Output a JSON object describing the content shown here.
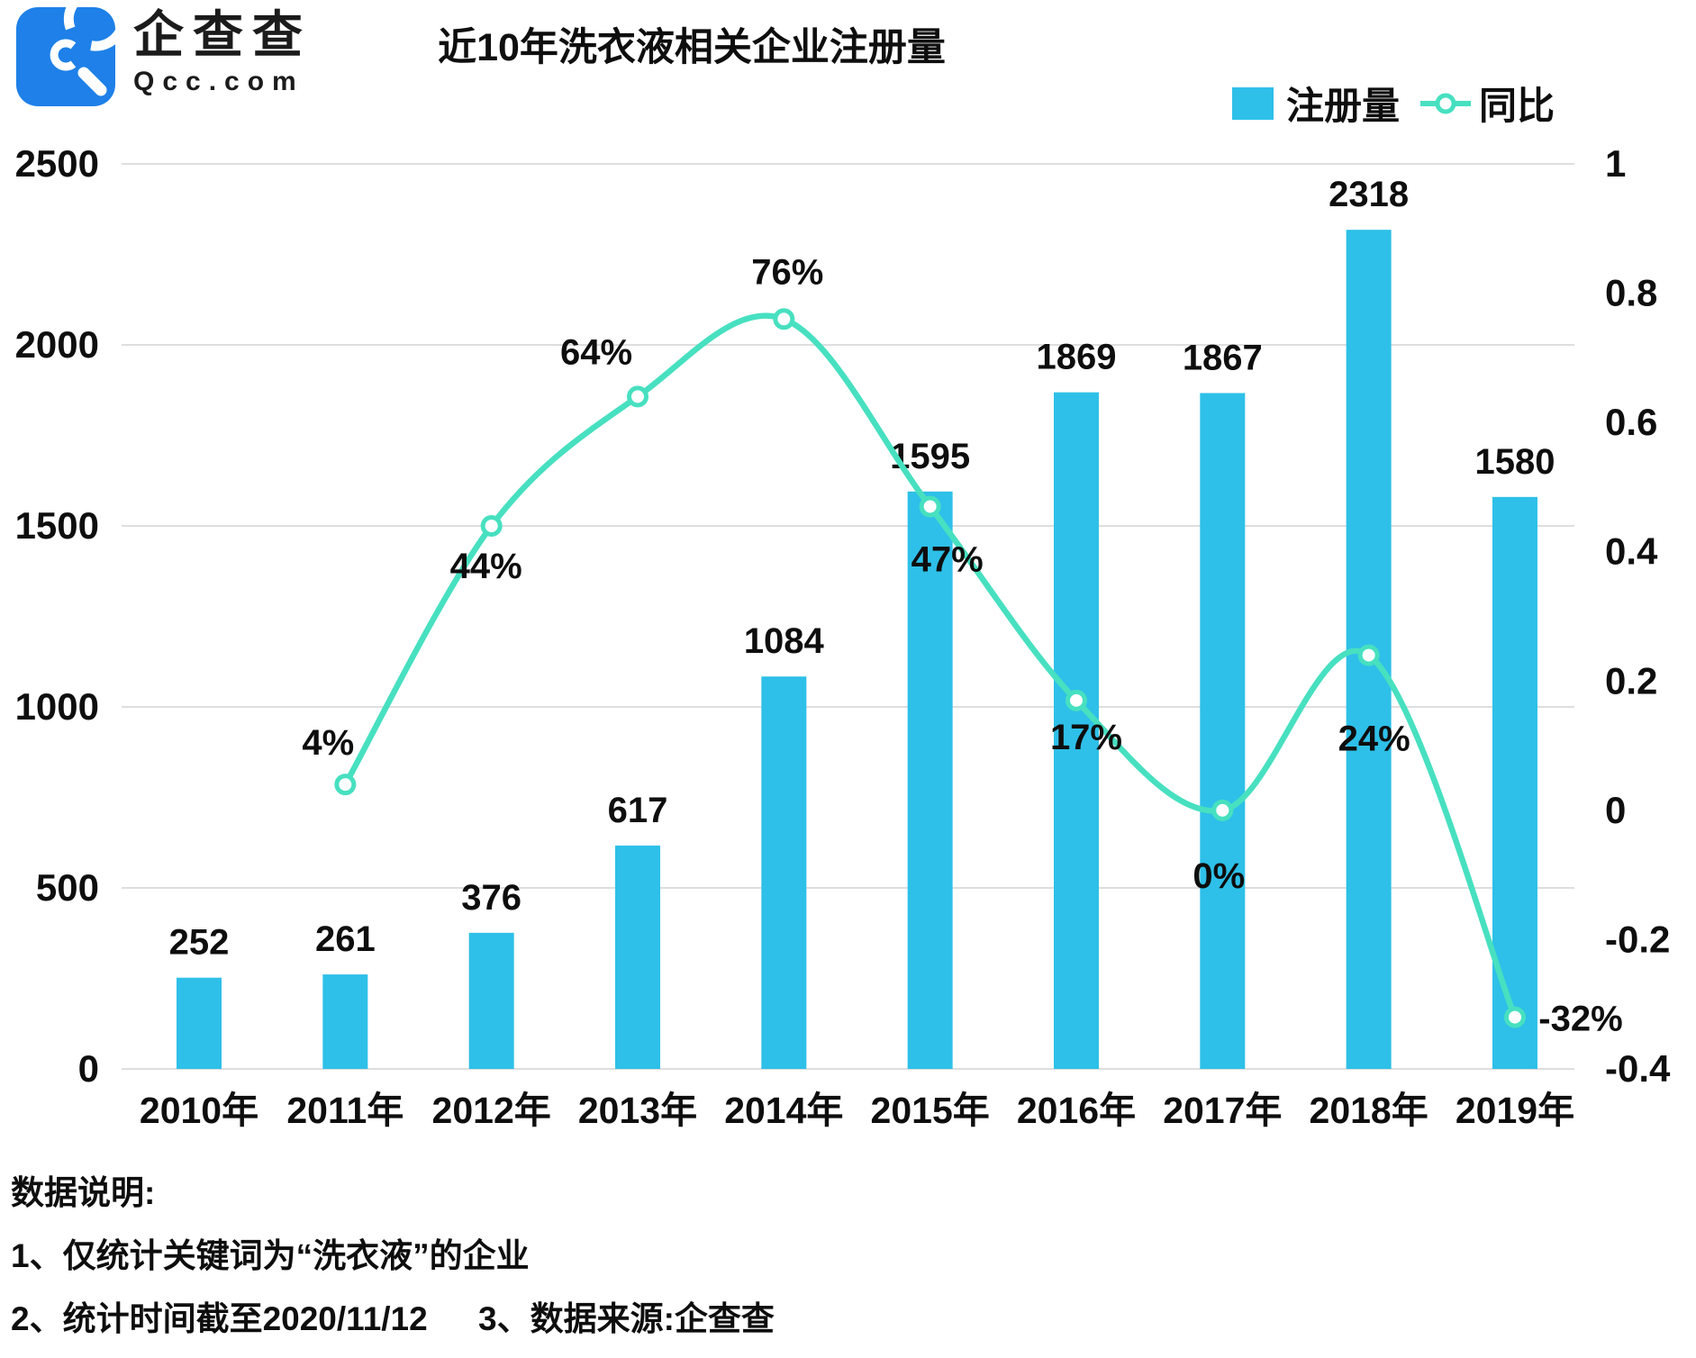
{
  "header": {
    "logo": {
      "brand_cn": "企查查",
      "brand_en": "Qcc.com"
    },
    "title": "近10年洗衣液相关企业注册量"
  },
  "legend": {
    "bar_label": "注册量",
    "line_label": "同比"
  },
  "notes": {
    "heading": "数据说明:",
    "note1": "1、仅统计关键词为“洗衣液”的企业",
    "note2": "2、统计时间截至2020/11/12",
    "note3": "3、数据来源:企查查"
  },
  "colors": {
    "bar": "#2EC0E8",
    "line": "#47E0C0",
    "logo_blue": "#1E80E8",
    "grid": "#DEDEDE",
    "text": "#0E0E0E"
  },
  "chart_data": {
    "type": "combo",
    "title": "近10年洗衣液相关企业注册量",
    "categories": [
      "2010年",
      "2011年",
      "2012年",
      "2013年",
      "2014年",
      "2015年",
      "2016年",
      "2017年",
      "2018年",
      "2019年"
    ],
    "series": [
      {
        "name": "注册量",
        "type": "bar",
        "axis": "left",
        "values": [
          252,
          261,
          376,
          617,
          1084,
          1595,
          1869,
          1867,
          2318,
          1580
        ]
      },
      {
        "name": "同比",
        "type": "line",
        "axis": "right",
        "values": [
          null,
          0.04,
          0.44,
          0.64,
          0.76,
          0.47,
          0.17,
          0,
          0.24,
          -0.32
        ],
        "labels": [
          null,
          "4%",
          "44%",
          "64%",
          "76%",
          "47%",
          "17%",
          "0%",
          "24%",
          "-32%"
        ]
      }
    ],
    "left_axis": {
      "min": 0,
      "max": 2500,
      "ticks": [
        0,
        500,
        1000,
        1500,
        2000,
        2500
      ]
    },
    "right_axis": {
      "min": -0.4,
      "max": 1,
      "ticks": [
        1,
        0.8,
        0.6,
        0.4,
        0.2,
        0,
        -0.2,
        -0.4
      ]
    },
    "grid": true,
    "legend_position": "top-right",
    "label_offsets": [
      null,
      [
        -19,
        -33
      ],
      [
        -6,
        58
      ],
      [
        -46,
        -36
      ],
      [
        4,
        -39
      ],
      [
        19,
        72
      ],
      [
        11,
        54
      ],
      [
        -4,
        86
      ],
      [
        6,
        106
      ],
      [
        73,
        15
      ]
    ]
  }
}
